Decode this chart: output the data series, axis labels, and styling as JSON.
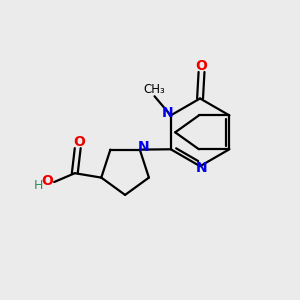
{
  "bg_color": "#ebebeb",
  "bond_color": "#000000",
  "n_color": "#0000ee",
  "o_color": "#ee0000",
  "ho_color": "#2e8b57",
  "line_width": 1.6,
  "font_size": 10,
  "figsize": [
    3.0,
    3.0
  ],
  "dpi": 100,
  "xlim": [
    0,
    10
  ],
  "ylim": [
    0,
    10
  ]
}
